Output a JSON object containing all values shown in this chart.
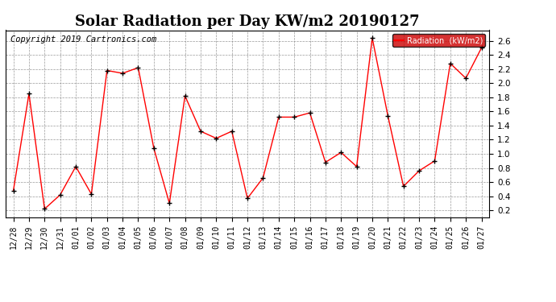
{
  "title": "Solar Radiation per Day KW/m2 20190127",
  "copyright": "Copyright 2019 Cartronics.com",
  "legend_label": "Radiation  (kW/m2)",
  "dates": [
    "12/28",
    "12/29",
    "12/30",
    "12/31",
    "01/01",
    "01/02",
    "01/03",
    "01/04",
    "01/05",
    "01/06",
    "01/07",
    "01/08",
    "01/09",
    "01/10",
    "01/11",
    "01/12",
    "01/13",
    "01/14",
    "01/15",
    "01/16",
    "01/17",
    "01/18",
    "01/19",
    "01/20",
    "01/21",
    "01/22",
    "01/23",
    "01/24",
    "01/25",
    "01/26",
    "01/27"
  ],
  "values": [
    0.48,
    1.85,
    0.22,
    0.42,
    0.82,
    0.43,
    2.18,
    2.14,
    2.22,
    1.08,
    0.3,
    1.82,
    1.32,
    1.22,
    1.32,
    0.37,
    0.66,
    1.52,
    1.52,
    1.58,
    0.88,
    1.02,
    0.82,
    2.64,
    1.54,
    0.54,
    0.76,
    0.9,
    2.28,
    2.07,
    2.5
  ],
  "line_color": "red",
  "marker_color": "black",
  "bg_color": "white",
  "ylim": [
    0.1,
    2.75
  ],
  "yticks": [
    0.2,
    0.4,
    0.6,
    0.8,
    1.0,
    1.2,
    1.4,
    1.6,
    1.8,
    2.0,
    2.2,
    2.4,
    2.6
  ],
  "title_fontsize": 13,
  "copyright_fontsize": 7.5,
  "tick_fontsize": 7,
  "legend_bg": "#cc0000",
  "legend_text_color": "white"
}
